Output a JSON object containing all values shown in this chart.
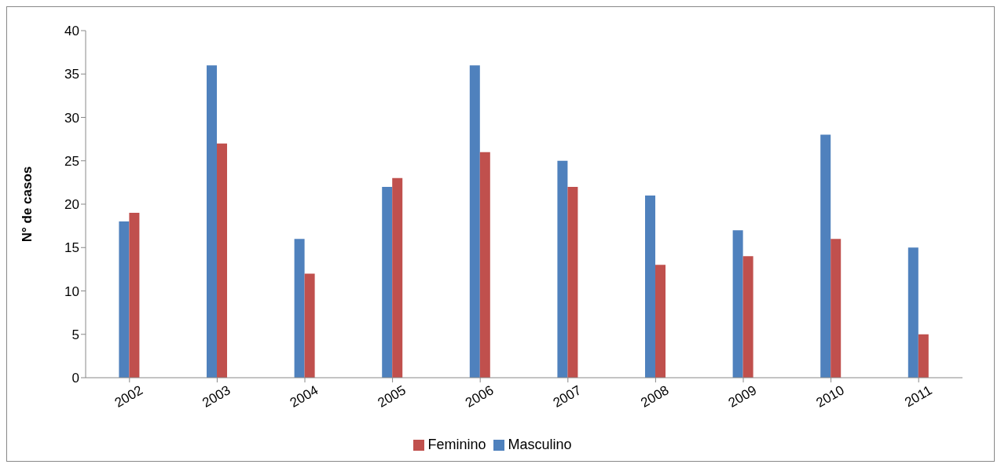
{
  "chart_data": {
    "type": "bar",
    "ylabel": "N° de casos",
    "categories": [
      "2002",
      "2003",
      "2004",
      "2005",
      "2006",
      "2007",
      "2008",
      "2009",
      "2010",
      "2011"
    ],
    "series": [
      {
        "name": "Masculino",
        "color": "#4f81bd",
        "values": [
          18,
          36,
          16,
          22,
          36,
          25,
          21,
          17,
          28,
          15
        ]
      },
      {
        "name": "Feminino",
        "color": "#c0504d",
        "values": [
          19,
          27,
          12,
          23,
          26,
          22,
          13,
          14,
          16,
          5
        ]
      }
    ],
    "ylim": [
      0,
      40
    ],
    "yticks": [
      0,
      5,
      10,
      15,
      20,
      25,
      30,
      35,
      40
    ],
    "grid": false,
    "legend": "bottom"
  }
}
